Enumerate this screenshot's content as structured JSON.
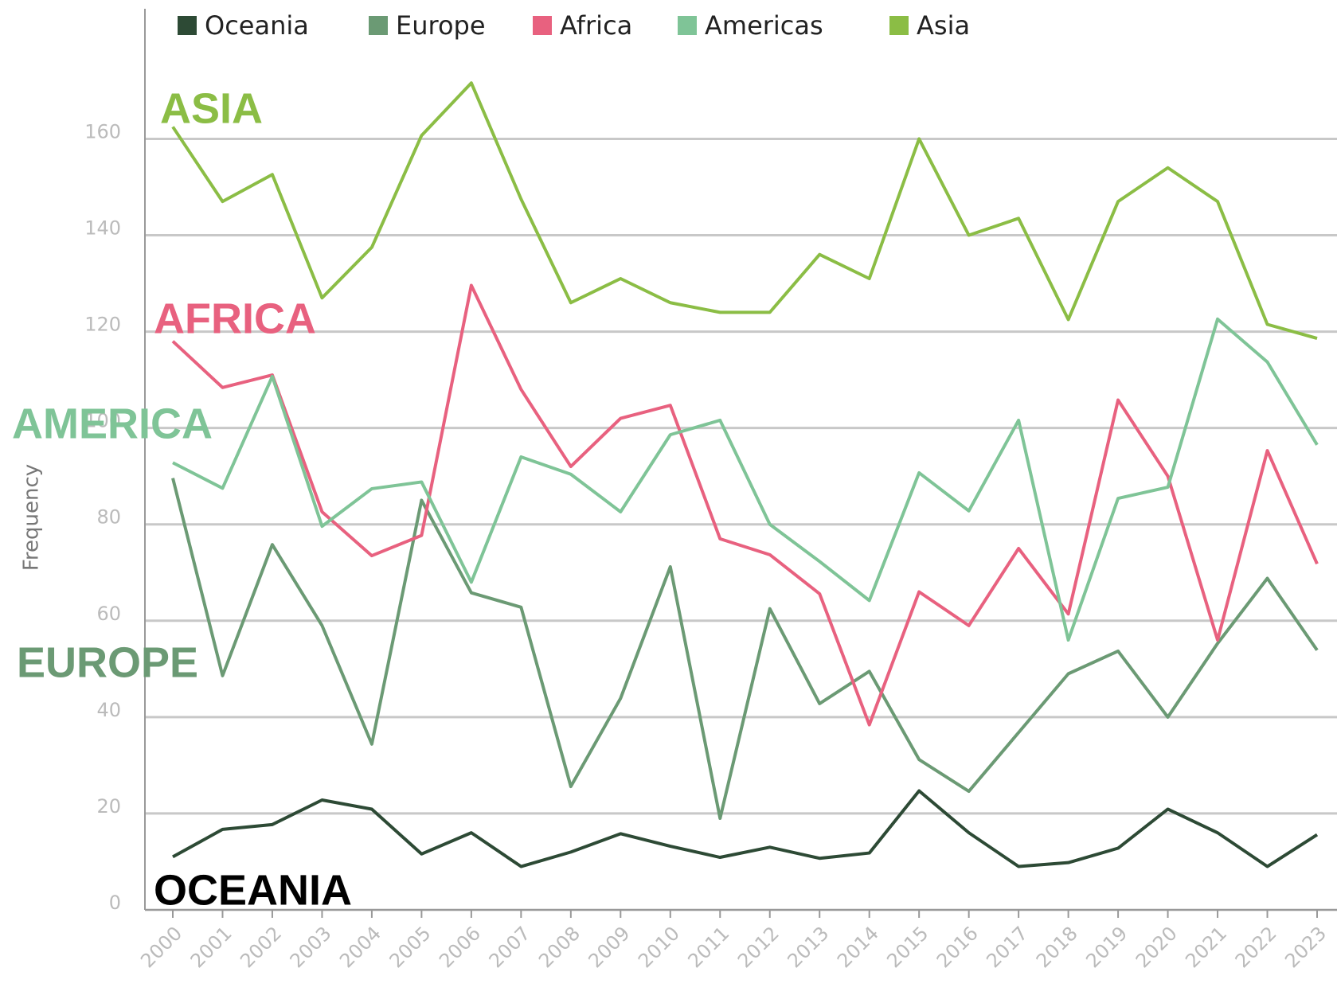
{
  "chart_data": {
    "type": "line",
    "y_label": "Frequency",
    "categories": [
      "2000",
      "2001",
      "2002",
      "2003",
      "2004",
      "2005",
      "2006",
      "2007",
      "2008",
      "2009",
      "2010",
      "2011",
      "2012",
      "2013",
      "2014",
      "2015",
      "2016",
      "2017",
      "2018",
      "2019",
      "2020",
      "2021",
      "2022",
      "2023"
    ],
    "series": [
      {
        "name": "Oceania",
        "color": "#2d4a35",
        "values": [
          11,
          16.7,
          17.7,
          22.8,
          20.9,
          11.6,
          16,
          9,
          12,
          15.8,
          13.2,
          10.9,
          13,
          10.7,
          11.8,
          24.7,
          16,
          9,
          9.8,
          12.8,
          20.9,
          16,
          9,
          15.6
        ]
      },
      {
        "name": "Europe",
        "color": "#6b9a74",
        "values": [
          89.6,
          48.6,
          75.8,
          59,
          34.4,
          85,
          65.8,
          62.8,
          25.6,
          43.9,
          71.2,
          19,
          62.5,
          42.8,
          49.5,
          31.2,
          24.6,
          36.8,
          49,
          53.7,
          40,
          55.3,
          68.8,
          53.9
        ]
      },
      {
        "name": "Africa",
        "color": "#e8617f",
        "values": [
          118,
          108.4,
          111,
          82.6,
          73.5,
          77.7,
          129.6,
          108,
          92,
          102,
          104.7,
          77,
          73.7,
          65.6,
          38.4,
          66,
          59,
          75,
          61.4,
          105.8,
          90,
          56,
          95.3,
          71.8
        ]
      },
      {
        "name": "Americas",
        "color": "#7fc497",
        "values": [
          92.8,
          87.5,
          110.7,
          79.6,
          87.4,
          88.8,
          68,
          94,
          90.4,
          82.6,
          98.6,
          101.6,
          80,
          72.3,
          64.2,
          90.7,
          82.8,
          101.6,
          56,
          85.4,
          87.7,
          122.6,
          113.7,
          96.5
        ]
      },
      {
        "name": "Asia",
        "color": "#8bbd45",
        "values": [
          162.5,
          147,
          152.6,
          127,
          137.5,
          160.7,
          171.6,
          147.5,
          126,
          131,
          126,
          124,
          124,
          136,
          131,
          160,
          140,
          143.5,
          122.5,
          147,
          154,
          147,
          121.5,
          118.6
        ]
      }
    ],
    "annotations": [
      {
        "text": "ASIA",
        "color": "#8bbd45"
      },
      {
        "text": "AFRICA",
        "color": "#e8617f"
      },
      {
        "text": "AMERICA",
        "color": "#7fc497"
      },
      {
        "text": "EUROPE",
        "color": "#6b9a74"
      },
      {
        "text": "OCEANIA",
        "color": "#000000"
      }
    ],
    "ylim": [
      0,
      187
    ],
    "yticks": [
      0,
      20,
      40,
      60,
      80,
      100,
      120,
      140,
      160
    ],
    "grid": true,
    "legend": "top"
  }
}
